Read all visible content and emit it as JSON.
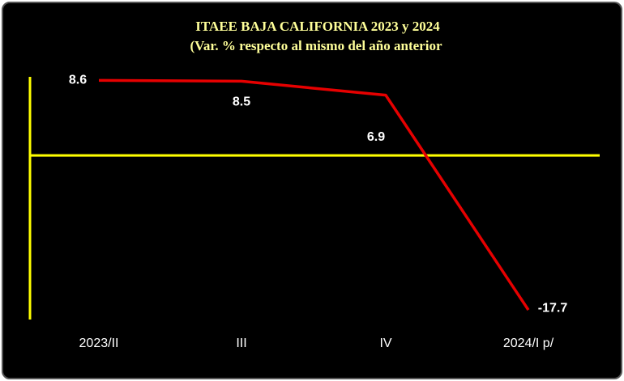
{
  "chart_data": {
    "type": "line",
    "title": "ITAEE BAJA CALIFORNIA 2023 y 2024",
    "subtitle": "(Var. % respecto al mismo del año anterior",
    "categories": [
      "2023/II",
      "III",
      "IV",
      "2024/I p/"
    ],
    "series": [
      {
        "name": "ITAEE",
        "color": "#e60000",
        "values": [
          8.6,
          8.5,
          6.9,
          -17.7
        ]
      }
    ],
    "ylim": [
      -18.8,
      9.0
    ],
    "axis_color": "#ffff00"
  }
}
